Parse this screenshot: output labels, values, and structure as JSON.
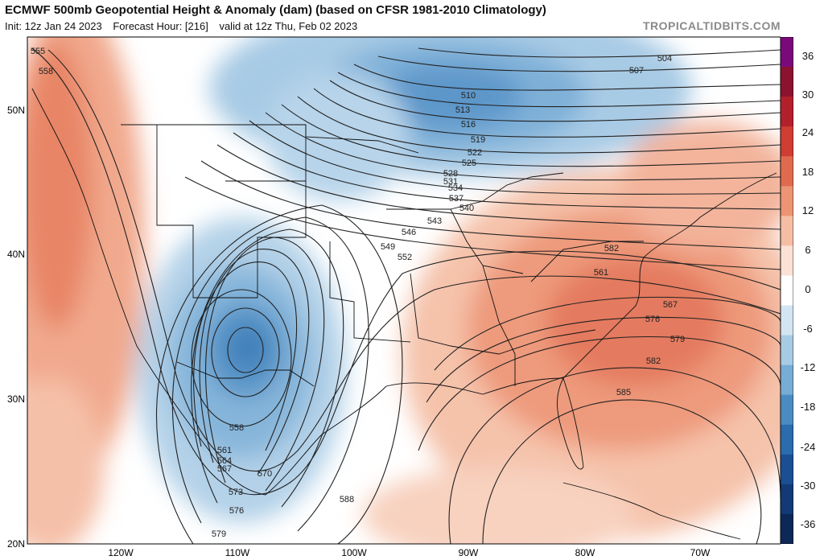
{
  "header": {
    "title": "ECMWF 500mb Geopotential Height & Anomaly (dam) (based on CFSR 1981-2010 Climatology)",
    "init": "Init: 12z Jan 24 2023",
    "forecast_hour": "Forecast Hour: [216]",
    "valid": "valid at 12z Thu, Feb 02 2023",
    "brand": "TROPICALTIDBITS.COM"
  },
  "map": {
    "latitude_labels": [
      "50N",
      "40N",
      "30N",
      "20N"
    ],
    "longitude_labels": [
      "120W",
      "110W",
      "100W",
      "90W",
      "80W",
      "70W"
    ],
    "contour_labels": [
      "555",
      "558",
      "504",
      "507",
      "510",
      "513",
      "516",
      "519",
      "522",
      "525",
      "528",
      "531",
      "534",
      "537",
      "540",
      "543",
      "546",
      "549",
      "552",
      "558",
      "561",
      "564",
      "567",
      "570",
      "573",
      "576",
      "579",
      "582",
      "561",
      "567",
      "576",
      "579",
      "582",
      "585",
      "588"
    ],
    "colors": {
      "warm_max": "#c8403a",
      "cold_max": "#1f5fa8",
      "land_lines": "#111111"
    }
  },
  "colorbar": {
    "labels": [
      "36",
      "30",
      "24",
      "18",
      "12",
      "6",
      "0",
      "-6",
      "-12",
      "-18",
      "-24",
      "-30",
      "-36"
    ],
    "colors": [
      "#7a0a7c",
      "#8c1330",
      "#b3202c",
      "#cf3d33",
      "#e06a4e",
      "#ec9473",
      "#f5bea4",
      "#fbe2d4",
      "#ffffff",
      "#d3e5f2",
      "#a7cbe5",
      "#77acd4",
      "#4a8cc2",
      "#2a6cad",
      "#1a4f93",
      "#123a76",
      "#0c2857"
    ]
  }
}
